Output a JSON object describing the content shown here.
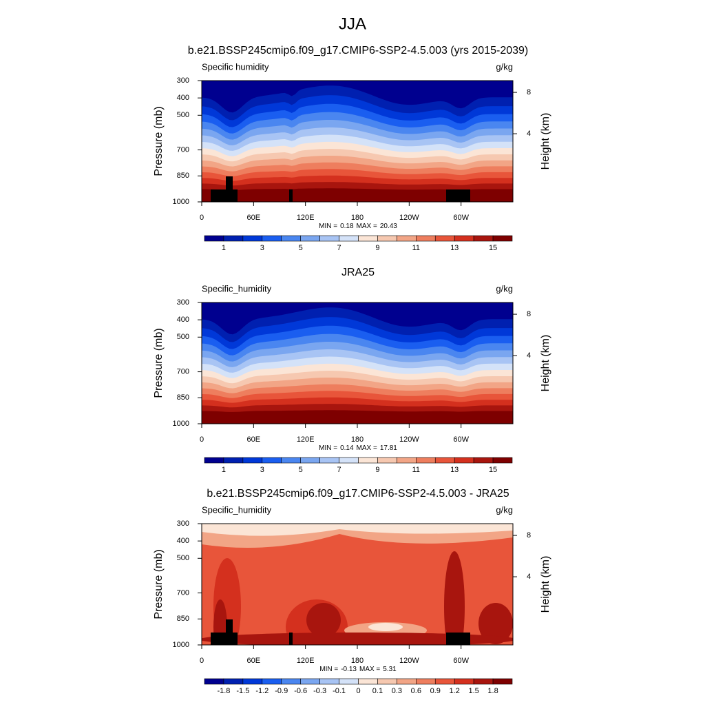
{
  "page_title": "JJA",
  "chart_data": [
    {
      "type": "contour",
      "title": "b.e21.BSSP245cmip6.f09_g17.CMIP6-SSP2-4.5.003 (yrs 2015-2039)",
      "left_string": "Specific humidity",
      "right_string": "g/kg",
      "ylabel": "Pressure (mb)",
      "y2label": "Height (km)",
      "xlim": [
        0,
        360
      ],
      "xticks": [
        0,
        {
          "value": 60,
          "label": "60E"
        },
        {
          "value": 120,
          "label": "120E"
        },
        180,
        {
          "value": 240,
          "label": "120W"
        },
        {
          "value": 300,
          "label": "60W"
        }
      ],
      "ylim": [
        1000,
        300
      ],
      "yticks": [
        300,
        400,
        500,
        700,
        850,
        1000
      ],
      "y2ticks": [
        8,
        4
      ],
      "min_label": "MIN =",
      "min": 0.18,
      "max_label": "MAX =",
      "max": 20.43,
      "colorbar": {
        "colors": [
          "#00008f",
          "#0020b0",
          "#0038d8",
          "#1a5ef0",
          "#4a86f0",
          "#7aa6f0",
          "#a8c4f4",
          "#d4e2f8",
          "#fbe5d6",
          "#f6c8b0",
          "#f2a586",
          "#ee7e5e",
          "#e8553a",
          "#d4301e",
          "#a8150e",
          "#7e0000"
        ],
        "lim": [
          0,
          16
        ],
        "ticks": [
          1,
          3,
          5,
          7,
          9,
          11,
          13,
          15
        ]
      }
    },
    {
      "type": "contour",
      "title": "JRA25",
      "left_string": "Specific_humidity",
      "right_string": "g/kg",
      "ylabel": "Pressure (mb)",
      "y2label": "Height (km)",
      "xlim": [
        0,
        360
      ],
      "xticks": [
        0,
        {
          "value": 60,
          "label": "60E"
        },
        {
          "value": 120,
          "label": "120E"
        },
        180,
        {
          "value": 240,
          "label": "120W"
        },
        {
          "value": 300,
          "label": "60W"
        }
      ],
      "ylim": [
        1000,
        300
      ],
      "yticks": [
        300,
        400,
        500,
        700,
        850,
        1000
      ],
      "y2ticks": [
        8,
        4
      ],
      "min_label": "MIN =",
      "min": 0.14,
      "max_label": "MAX =",
      "max": 17.81,
      "colorbar": {
        "colors": [
          "#00008f",
          "#0020b0",
          "#0038d8",
          "#1a5ef0",
          "#4a86f0",
          "#7aa6f0",
          "#a8c4f4",
          "#d4e2f8",
          "#fbe5d6",
          "#f6c8b0",
          "#f2a586",
          "#ee7e5e",
          "#e8553a",
          "#d4301e",
          "#a8150e",
          "#7e0000"
        ],
        "lim": [
          0,
          16
        ],
        "ticks": [
          1,
          3,
          5,
          7,
          9,
          11,
          13,
          15
        ]
      }
    },
    {
      "type": "contour",
      "title": "b.e21.BSSP245cmip6.f09_g17.CMIP6-SSP2-4.5.003 - JRA25",
      "left_string": "Specific_humidity",
      "right_string": "g/kg",
      "ylabel": "Pressure (mb)",
      "y2label": "Height (km)",
      "xlim": [
        0,
        360
      ],
      "xticks": [
        0,
        {
          "value": 60,
          "label": "60E"
        },
        {
          "value": 120,
          "label": "120E"
        },
        180,
        {
          "value": 240,
          "label": "120W"
        },
        {
          "value": 300,
          "label": "60W"
        }
      ],
      "ylim": [
        1000,
        300
      ],
      "yticks": [
        300,
        400,
        500,
        700,
        850,
        1000
      ],
      "y2ticks": [
        8,
        4
      ],
      "min_label": "MIN =",
      "min": -0.13,
      "max_label": "MAX =",
      "max": 5.31,
      "colorbar": {
        "colors": [
          "#00008f",
          "#0020b0",
          "#0038d8",
          "#1a5ef0",
          "#4a86f0",
          "#7aa6f0",
          "#a8c4f4",
          "#d4e2f8",
          "#fbe5d6",
          "#f6c8b0",
          "#f2a586",
          "#ee7e5e",
          "#e8553a",
          "#d4301e",
          "#a8150e",
          "#7e0000"
        ],
        "ticks": [
          -1.8,
          -1.5,
          -1.2,
          -0.9,
          -0.6,
          -0.3,
          -0.1,
          0,
          0.1,
          0.3,
          0.6,
          0.9,
          1.2,
          1.5,
          1.8
        ]
      }
    }
  ]
}
